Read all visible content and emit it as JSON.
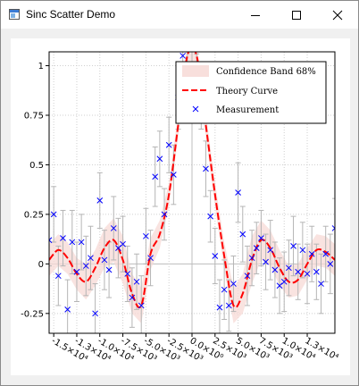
{
  "window": {
    "title": "Sinc Scatter Demo"
  },
  "chart_data": {
    "type": "scatter",
    "xlim": [
      -15500,
      15500
    ],
    "ylim": [
      -0.35,
      1.07
    ],
    "grid": true,
    "legend_position": "top-right",
    "yticks": [
      -0.25,
      0,
      0.25,
      0.5,
      0.75,
      1
    ],
    "ytick_labels": [
      "-0.25",
      "0",
      "0.25",
      "0.5",
      "0.75",
      "1"
    ],
    "xticks": [
      -15000,
      -12500,
      -10000,
      -7500,
      -5000,
      -2500,
      0,
      2500,
      5000,
      7500,
      10000,
      12500
    ],
    "xtick_labels": [
      "-1.5×10⁴",
      "-1.3×10⁴",
      "-1.0×10⁴",
      "-7.5×10³",
      "-5.0×10³",
      "-2.5×10³",
      "0.0×10⁰",
      "2.5×10³",
      "5.0×10³",
      "7.5×10³",
      "1.0×10⁴",
      "1.3×10⁴"
    ],
    "legend": [
      {
        "label": "Confidence Band 68%",
        "color": "#f7d9d6"
      },
      {
        "label": "Theory Curve",
        "color": "#ff0000"
      },
      {
        "label": "Measurement",
        "color": "#0000ff"
      }
    ],
    "theory": {
      "x": [
        -15500,
        -14500,
        -13500,
        -12500,
        -11500,
        -10500,
        -9500,
        -8500,
        -7500,
        -6500,
        -5500,
        -4500,
        -3500,
        -2500,
        -1500,
        -500,
        500,
        1500,
        2500,
        3500,
        4500,
        5500,
        6500,
        7500,
        8500,
        9500,
        10500,
        11500,
        12500,
        13500,
        14500,
        15500
      ],
      "y": [
        0.02,
        0.07,
        0.03,
        -0.05,
        -0.09,
        -0.02,
        0.08,
        0.12,
        0.02,
        -0.15,
        -0.21,
        0.05,
        0.15,
        0.35,
        0.7,
        1.05,
        1.05,
        0.7,
        0.35,
        0.04,
        -0.21,
        -0.15,
        0.02,
        0.12,
        0.08,
        -0.02,
        -0.09,
        -0.08,
        0.0,
        0.07,
        0.06,
        0.02
      ],
      "band_width": [
        0.08,
        0.08,
        0.08,
        0.08,
        0.09,
        0.09,
        0.1,
        0.11,
        0.12,
        0.1,
        0.09,
        0.08,
        0.07,
        0.06,
        0.06,
        0.06,
        0.06,
        0.06,
        0.06,
        0.07,
        0.09,
        0.1,
        0.12,
        0.1,
        0.09,
        0.09,
        0.08,
        0.08,
        0.08,
        0.08,
        0.08,
        0.08
      ]
    },
    "measurements": {
      "x": [
        -15500,
        -15000,
        -14500,
        -14000,
        -13500,
        -13000,
        -12500,
        -12000,
        -11500,
        -11000,
        -10500,
        -10000,
        -9500,
        -9000,
        -8500,
        -8000,
        -7500,
        -7000,
        -6500,
        -6000,
        -5500,
        -5000,
        -4500,
        -4000,
        -3500,
        -3000,
        -2500,
        -2000,
        -1500,
        -1000,
        -500,
        0,
        500,
        1000,
        1500,
        2000,
        2500,
        3000,
        3500,
        4000,
        4500,
        5000,
        5500,
        6000,
        6500,
        7000,
        7500,
        8000,
        8500,
        9000,
        9500,
        10000,
        10500,
        11000,
        11500,
        12000,
        12500,
        13000,
        13500,
        14000,
        14500,
        15000,
        15500
      ],
      "y": [
        0.12,
        0.25,
        -0.06,
        0.13,
        -0.23,
        0.11,
        -0.04,
        0.11,
        -0.01,
        0.03,
        -0.25,
        0.32,
        0.02,
        -0.03,
        0.18,
        0.08,
        0.1,
        -0.05,
        -0.17,
        -0.09,
        -0.21,
        0.14,
        0.03,
        0.44,
        0.53,
        0.25,
        0.6,
        0.45,
        0.84,
        1.05,
        0.97,
        1.0,
        0.92,
        0.83,
        0.48,
        0.24,
        0.04,
        -0.22,
        -0.13,
        -0.21,
        -0.1,
        0.36,
        0.15,
        -0.06,
        0.03,
        0.08,
        0.13,
        0.01,
        0.07,
        -0.03,
        -0.11,
        -0.09,
        -0.02,
        0.09,
        -0.04,
        0.07,
        -0.05,
        0.05,
        -0.04,
        -0.1,
        0.05,
        0.0,
        0.18
      ],
      "err": [
        0.13,
        0.14,
        0.15,
        0.14,
        0.15,
        0.16,
        0.15,
        0.14,
        0.15,
        0.16,
        0.15,
        0.14,
        0.15,
        0.14,
        0.16,
        0.15,
        0.14,
        0.14,
        0.15,
        0.14,
        0.15,
        0.14,
        0.14,
        0.15,
        0.14,
        0.13,
        0.14,
        0.15,
        0.16,
        0.14,
        0.14,
        0.13,
        0.14,
        0.15,
        0.14,
        0.13,
        0.14,
        0.14,
        0.15,
        0.13,
        0.14,
        0.15,
        0.14,
        0.15,
        0.14,
        0.13,
        0.14,
        0.14,
        0.15,
        0.14,
        0.14,
        0.15,
        0.14,
        0.15,
        0.14,
        0.14,
        0.15,
        0.14,
        0.14,
        0.15,
        0.14,
        0.15,
        0.15
      ]
    }
  }
}
